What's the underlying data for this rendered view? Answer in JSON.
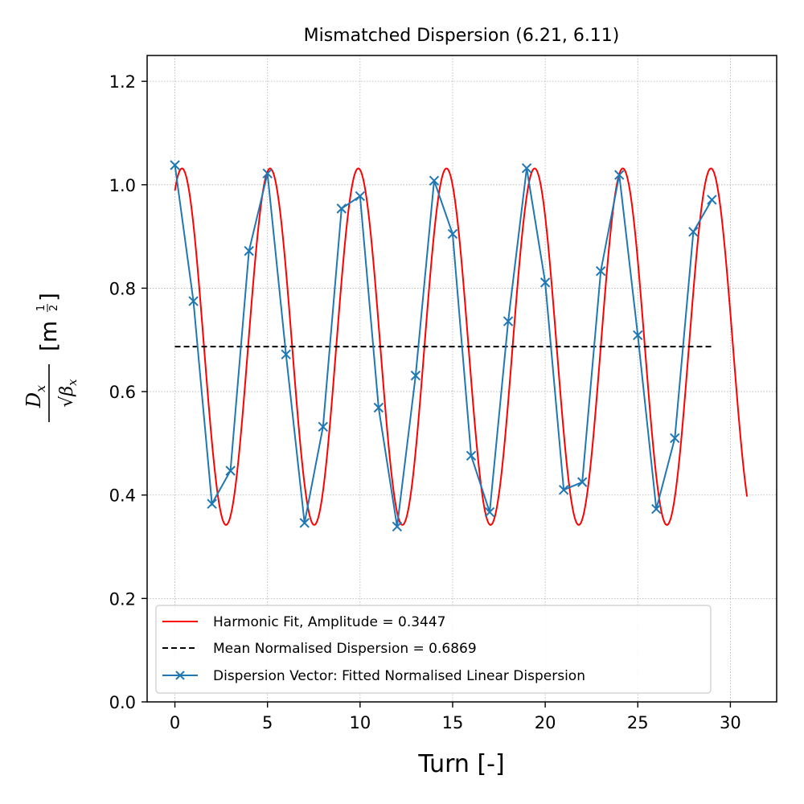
{
  "chart_data": {
    "type": "line",
    "title": "Mismatched Dispersion (6.21, 6.11)",
    "xlabel": "Turn [-]",
    "ylabel_parts": {
      "numerator": "D",
      "numerator_sub": "x",
      "sqrt": "√",
      "denominator": "β",
      "denominator_sub": "x",
      "unit_open": "[m",
      "exp_num": "1",
      "exp_den": "2",
      "unit_close": "]"
    },
    "xlim": [
      -1.5,
      32.5
    ],
    "ylim": [
      0.0,
      1.25
    ],
    "xticks": [
      0,
      5,
      10,
      15,
      20,
      25,
      30
    ],
    "yticks": [
      0.0,
      0.2,
      0.4,
      0.6,
      0.8,
      1.0,
      1.2
    ],
    "xtick_labels": [
      "0",
      "5",
      "10",
      "15",
      "20",
      "25",
      "30"
    ],
    "ytick_labels": [
      "0.0",
      "0.2",
      "0.4",
      "0.6",
      "0.8",
      "1.0",
      "1.2"
    ],
    "grid": true,
    "legend_position": "lower-left",
    "series": [
      {
        "name": "Harmonic Fit, Amplitude = 0.3447",
        "kind": "harmonic",
        "color": "#ff0000",
        "mean": 0.6869,
        "amplitude": 0.3447,
        "tune": 0.21,
        "phase": -0.08,
        "x_range": [
          0,
          30.9
        ]
      },
      {
        "name": "Mean Normalised Dispersion = 0.6869",
        "kind": "hline",
        "color": "#000000",
        "dashed": true,
        "y": 0.6869,
        "x_range": [
          0,
          29
        ]
      },
      {
        "name": "Dispersion Vector: Fitted Normalised Linear Dispersion",
        "kind": "markers-line",
        "color": "#1f77b4",
        "x": [
          0,
          1,
          2,
          3,
          4,
          5,
          6,
          7,
          8,
          9,
          10,
          11,
          12,
          13,
          14,
          15,
          16,
          17,
          18,
          19,
          20,
          21,
          22,
          23,
          24,
          25,
          26,
          27,
          28,
          29
        ],
        "values": [
          1.038,
          0.775,
          0.383,
          0.447,
          0.872,
          1.022,
          0.672,
          0.346,
          0.532,
          0.954,
          0.978,
          0.569,
          0.339,
          0.631,
          1.008,
          0.905,
          0.476,
          0.367,
          0.736,
          1.032,
          0.811,
          0.41,
          0.425,
          0.833,
          1.019,
          0.709,
          0.373,
          0.51,
          0.909,
          0.971
        ]
      }
    ]
  }
}
